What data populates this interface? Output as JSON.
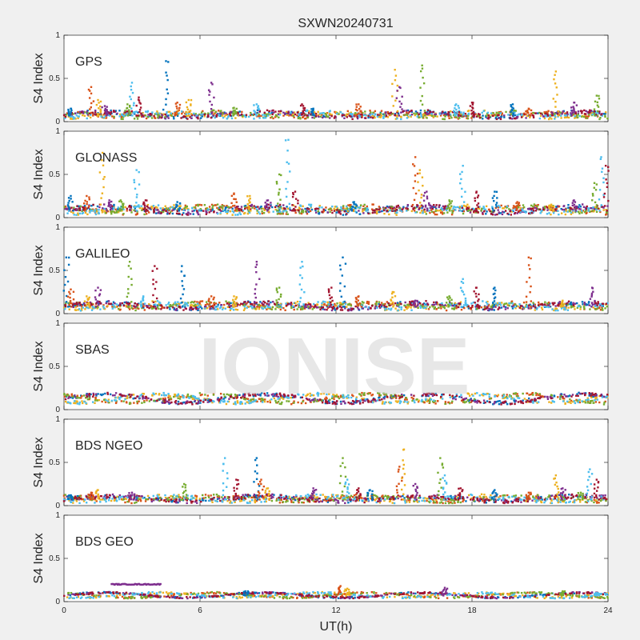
{
  "title": "SXWN20240731",
  "watermark": "IONISE",
  "xlabel": "UT(h)",
  "xticks": [
    "0",
    "6",
    "12",
    "18",
    "24"
  ],
  "chart_data": [
    {
      "type": "scatter",
      "label": "GPS",
      "ylabel": "S4 Index",
      "xlim": [
        0,
        24
      ],
      "ylim": [
        0,
        1
      ],
      "yticks": [
        "0",
        "0.5",
        "1"
      ],
      "baseline": 0.07,
      "noise": 0.05,
      "spikes": [
        [
          0.3,
          0.15
        ],
        [
          1.2,
          0.4
        ],
        [
          1.5,
          0.25
        ],
        [
          1.8,
          0.18
        ],
        [
          2.8,
          0.2
        ],
        [
          3.0,
          0.45
        ],
        [
          3.3,
          0.28
        ],
        [
          4.5,
          0.7
        ],
        [
          5.0,
          0.22
        ],
        [
          5.5,
          0.25
        ],
        [
          6.5,
          0.45
        ],
        [
          7.5,
          0.16
        ],
        [
          8.5,
          0.2
        ],
        [
          10.5,
          0.2
        ],
        [
          11.0,
          0.15
        ],
        [
          13.0,
          0.2
        ],
        [
          14.6,
          0.6
        ],
        [
          14.8,
          0.4
        ],
        [
          15.8,
          0.65
        ],
        [
          17.3,
          0.2
        ],
        [
          18.0,
          0.22
        ],
        [
          19.8,
          0.2
        ],
        [
          20.5,
          0.15
        ],
        [
          21.7,
          0.58
        ],
        [
          22.5,
          0.22
        ],
        [
          23.5,
          0.3
        ]
      ]
    },
    {
      "type": "scatter",
      "label": "GLONASS",
      "ylabel": "S4 Index",
      "xlim": [
        0,
        24
      ],
      "ylim": [
        0,
        1
      ],
      "yticks": [
        "0",
        "0.5",
        "1"
      ],
      "baseline": 0.08,
      "noise": 0.06,
      "spikes": [
        [
          0.3,
          0.25
        ],
        [
          1.0,
          0.25
        ],
        [
          1.7,
          0.75
        ],
        [
          2.0,
          0.2
        ],
        [
          2.5,
          0.2
        ],
        [
          3.2,
          0.55
        ],
        [
          3.6,
          0.2
        ],
        [
          5.0,
          0.18
        ],
        [
          7.5,
          0.28
        ],
        [
          8.2,
          0.25
        ],
        [
          9.0,
          0.2
        ],
        [
          9.5,
          0.5
        ],
        [
          9.9,
          0.9
        ],
        [
          10.2,
          0.3
        ],
        [
          12.8,
          0.18
        ],
        [
          15.5,
          0.7
        ],
        [
          15.7,
          0.55
        ],
        [
          16.0,
          0.3
        ],
        [
          17.0,
          0.2
        ],
        [
          17.6,
          0.6
        ],
        [
          18.2,
          0.3
        ],
        [
          19.0,
          0.3
        ],
        [
          20.0,
          0.18
        ],
        [
          21.5,
          0.15
        ],
        [
          22.5,
          0.2
        ],
        [
          23.4,
          0.4
        ],
        [
          23.7,
          0.7
        ],
        [
          23.9,
          0.6
        ]
      ]
    },
    {
      "type": "scatter",
      "label": "GALILEO",
      "ylabel": "S4 Index",
      "xlim": [
        0,
        24
      ],
      "ylim": [
        0,
        1
      ],
      "yticks": [
        "0",
        "0.5",
        "1"
      ],
      "baseline": 0.08,
      "noise": 0.05,
      "spikes": [
        [
          0.1,
          0.65
        ],
        [
          0.3,
          0.28
        ],
        [
          1.0,
          0.2
        ],
        [
          1.5,
          0.3
        ],
        [
          2.9,
          0.6
        ],
        [
          3.5,
          0.2
        ],
        [
          4.0,
          0.55
        ],
        [
          5.2,
          0.55
        ],
        [
          6.5,
          0.2
        ],
        [
          7.5,
          0.2
        ],
        [
          8.5,
          0.6
        ],
        [
          9.5,
          0.3
        ],
        [
          10.5,
          0.6
        ],
        [
          11.8,
          0.3
        ],
        [
          12.3,
          0.65
        ],
        [
          13.0,
          0.2
        ],
        [
          14.5,
          0.25
        ],
        [
          15.5,
          0.15
        ],
        [
          17.0,
          0.2
        ],
        [
          17.6,
          0.4
        ],
        [
          18.2,
          0.3
        ],
        [
          19.0,
          0.3
        ],
        [
          20.5,
          0.65
        ],
        [
          22.0,
          0.15
        ],
        [
          23.3,
          0.3
        ]
      ]
    },
    {
      "type": "scatter",
      "label": "SBAS",
      "ylabel": "S4 Index",
      "xlim": [
        0,
        24
      ],
      "ylim": [
        0,
        1
      ],
      "yticks": [
        "0",
        "0.5",
        "1"
      ],
      "baseline": 0.12,
      "noise": 0.04,
      "spikes": []
    },
    {
      "type": "scatter",
      "label": "BDS NGEO",
      "ylabel": "S4 Index",
      "xlim": [
        0,
        24
      ],
      "ylim": [
        0,
        1
      ],
      "yticks": [
        "0",
        "0.5",
        "1"
      ],
      "baseline": 0.07,
      "noise": 0.05,
      "spikes": [
        [
          0.3,
          0.12
        ],
        [
          1.2,
          0.15
        ],
        [
          1.5,
          0.18
        ],
        [
          3.0,
          0.15
        ],
        [
          5.3,
          0.25
        ],
        [
          7.1,
          0.55
        ],
        [
          7.6,
          0.3
        ],
        [
          8.5,
          0.55
        ],
        [
          8.7,
          0.3
        ],
        [
          9.0,
          0.2
        ],
        [
          11.0,
          0.2
        ],
        [
          12.3,
          0.55
        ],
        [
          12.5,
          0.3
        ],
        [
          13.0,
          0.2
        ],
        [
          13.5,
          0.18
        ],
        [
          14.8,
          0.45
        ],
        [
          15.0,
          0.65
        ],
        [
          15.5,
          0.25
        ],
        [
          16.6,
          0.55
        ],
        [
          16.8,
          0.35
        ],
        [
          17.5,
          0.2
        ],
        [
          19.0,
          0.18
        ],
        [
          20.5,
          0.15
        ],
        [
          21.7,
          0.35
        ],
        [
          22.0,
          0.2
        ],
        [
          22.8,
          0.15
        ],
        [
          23.2,
          0.42
        ],
        [
          23.5,
          0.3
        ]
      ]
    },
    {
      "type": "scatter",
      "label": "BDS GEO",
      "ylabel": "S4 Index",
      "xlim": [
        0,
        24
      ],
      "ylim": [
        0,
        1
      ],
      "yticks": [
        "0",
        "0.5",
        "1"
      ],
      "baseline": 0.07,
      "noise": 0.02,
      "band": {
        "x_start": 2.1,
        "x_end": 4.3,
        "y": 0.2
      },
      "spikes": [
        [
          8.0,
          0.12
        ],
        [
          12.2,
          0.18
        ],
        [
          12.5,
          0.15
        ],
        [
          16.8,
          0.16
        ],
        [
          22.0,
          0.12
        ],
        [
          23.5,
          0.1
        ]
      ]
    }
  ],
  "colors": [
    "#0072BD",
    "#D95319",
    "#EDB120",
    "#7E2F8E",
    "#77AC30",
    "#4DBEEE",
    "#A2142F"
  ]
}
